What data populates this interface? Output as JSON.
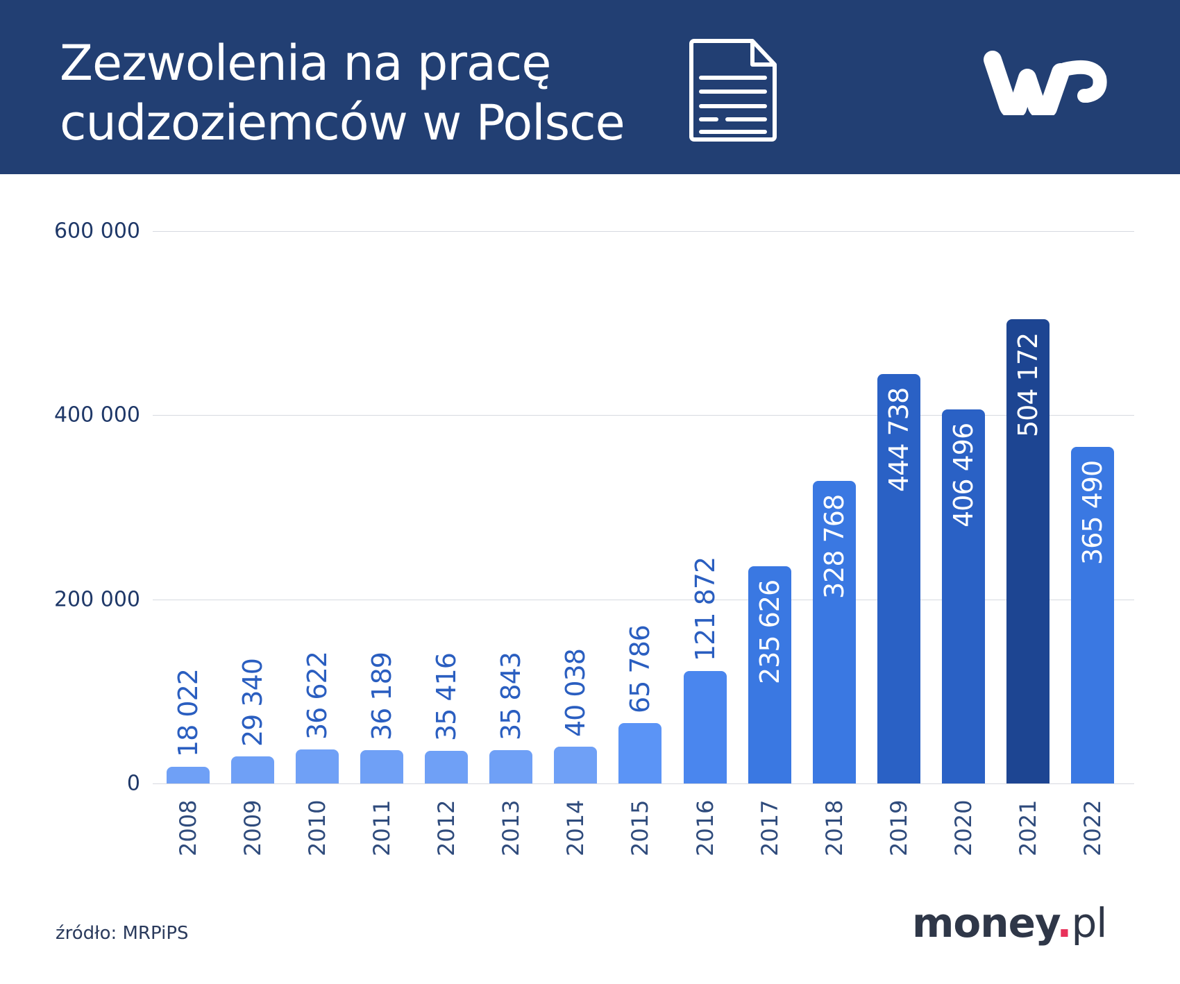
{
  "header": {
    "title_line1": "Zezwolenia na pracę",
    "title_line2": "cudzoziemców w Polsce",
    "icons": [
      "document-icon",
      "wp-logo"
    ],
    "background": "#223f73"
  },
  "footer": {
    "source": "źródło: MRPiPS",
    "brand_name": "money",
    "brand_dot": ".",
    "brand_tld": "pl",
    "brand_dot_color": "#e8315a"
  },
  "chart_data": {
    "type": "bar",
    "title": "Zezwolenia na pracę cudzoziemców w Polsce",
    "xlabel": "",
    "ylabel": "",
    "ylim": [
      0,
      600000
    ],
    "yticks": [
      0,
      200000,
      400000,
      600000
    ],
    "ytick_labels": [
      "0",
      "200 000",
      "400 000",
      "600 000"
    ],
    "grid": true,
    "legend": null,
    "categories": [
      "2008",
      "2009",
      "2010",
      "2011",
      "2012",
      "2013",
      "2014",
      "2015",
      "2016",
      "2017",
      "2018",
      "2019",
      "2020",
      "2021",
      "2022"
    ],
    "values": [
      18022,
      29340,
      36622,
      36189,
      35416,
      35843,
      40038,
      65786,
      121872,
      235626,
      328768,
      444738,
      406496,
      504172,
      365490
    ],
    "value_labels": [
      "18 022",
      "29 340",
      "36 622",
      "36 189",
      "35 416",
      "35 843",
      "40 038",
      "65 786",
      "121 872",
      "235 626",
      "328 768",
      "444 738",
      "406 496",
      "504 172",
      "365 490"
    ],
    "bar_colors": [
      "#6fa0f6",
      "#6fa0f6",
      "#6fa0f6",
      "#6fa0f6",
      "#6fa0f6",
      "#6fa0f6",
      "#6fa0f6",
      "#5b94f6",
      "#4a86ee",
      "#3a78e2",
      "#3a78e2",
      "#2a61c5",
      "#2a61c5",
      "#1d4592",
      "#3a78e2"
    ],
    "label_inside": [
      false,
      false,
      false,
      false,
      false,
      false,
      false,
      false,
      false,
      true,
      true,
      true,
      true,
      true,
      true
    ],
    "label_color_outside": "#2a5ec0",
    "label_color_inside": "#ffffff"
  }
}
